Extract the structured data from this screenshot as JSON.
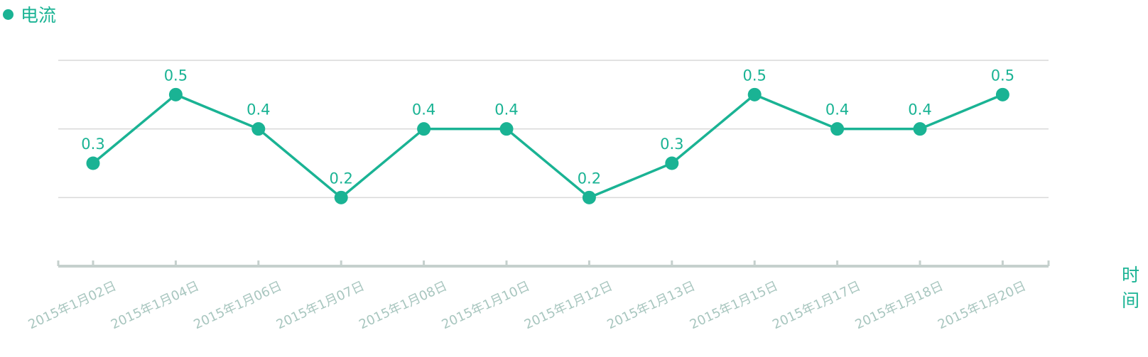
{
  "legend": {
    "label": "电流",
    "color": "#1ab394"
  },
  "x_axis_name": "时间",
  "chart_data": {
    "type": "line",
    "categories": [
      "2015年1月02日",
      "2015年1月04日",
      "2015年1月06日",
      "2015年1月07日",
      "2015年1月08日",
      "2015年1月10日",
      "2015年1月12日",
      "2015年1月13日",
      "2015年1月15日",
      "2015年1月17日",
      "2015年1月18日",
      "2015年1月20日"
    ],
    "series": [
      {
        "name": "电流",
        "values": [
          0.3,
          0.5,
          0.4,
          0.2,
          0.4,
          0.4,
          0.2,
          0.3,
          0.5,
          0.4,
          0.4,
          0.5
        ]
      }
    ],
    "data_labels": [
      "0.3",
      "0.5",
      "0.4",
      "0.2",
      "0.4",
      "0.4",
      "0.2",
      "0.3",
      "0.5",
      "0.4",
      "0.4",
      "0.5"
    ],
    "ylim": [
      0,
      0.6
    ],
    "grid": true,
    "colors": {
      "line": "#1ab394",
      "grid": "#d9d9d9",
      "axis": "#c5d0cd",
      "tick_label": "#a8c6bf"
    }
  }
}
